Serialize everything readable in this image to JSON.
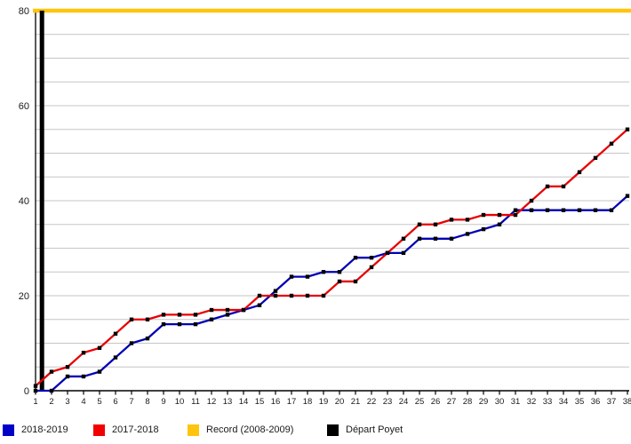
{
  "chart_data": {
    "type": "line",
    "title": "",
    "xlabel": "",
    "ylabel": "",
    "x": [
      1,
      2,
      3,
      4,
      5,
      6,
      7,
      8,
      9,
      10,
      11,
      12,
      13,
      14,
      15,
      16,
      17,
      18,
      19,
      20,
      21,
      22,
      23,
      24,
      25,
      26,
      27,
      28,
      29,
      30,
      31,
      32,
      33,
      34,
      35,
      36,
      37,
      38
    ],
    "xlim": [
      1,
      38
    ],
    "ylim": [
      0,
      80
    ],
    "yticks": [
      0,
      20,
      40,
      60,
      80
    ],
    "ytick_labels": [
      "0",
      "20",
      "40",
      "60",
      "80"
    ],
    "grid_step": 5,
    "grid_on": true,
    "marker": "square",
    "legend_position": "bottom",
    "series": [
      {
        "name": "2018-2019",
        "color": "#0000B4",
        "values": [
          0,
          0,
          3,
          3,
          4,
          7,
          10,
          11,
          14,
          14,
          14,
          15,
          16,
          17,
          18,
          21,
          24,
          24,
          25,
          25,
          28,
          28,
          29,
          29,
          32,
          32,
          32,
          33,
          34,
          35,
          38,
          38,
          38,
          38,
          38,
          38,
          38,
          41
        ]
      },
      {
        "name": "2017-2018",
        "color": "#E80000",
        "values": [
          1,
          4,
          5,
          8,
          9,
          12,
          15,
          15,
          16,
          16,
          16,
          17,
          17,
          17,
          20,
          20,
          20,
          20,
          20,
          23,
          23,
          26,
          29,
          32,
          35,
          35,
          36,
          36,
          37,
          37,
          37,
          40,
          43,
          43,
          46,
          49,
          52,
          55
        ]
      }
    ],
    "reference_lines": [
      {
        "name": "Record (2008-2009)",
        "orientation": "horizontal",
        "value": 80,
        "color": "#FFC40D"
      },
      {
        "name": "Départ Poyet",
        "orientation": "vertical",
        "value": 1.4,
        "color": "#000000"
      }
    ],
    "legend": [
      {
        "label": "2018-2019",
        "color": "#0000C8"
      },
      {
        "label": "2017-2018",
        "color": "#F20000"
      },
      {
        "label": "Record (2008-2009)",
        "color": "#FFC40D"
      },
      {
        "label": "Départ Poyet",
        "color": "#000000"
      }
    ],
    "axis_color": "#000000",
    "gridline_color": "#c6c6c6",
    "tick_font_size_x": 9.5,
    "tick_font_size_y": 11
  }
}
